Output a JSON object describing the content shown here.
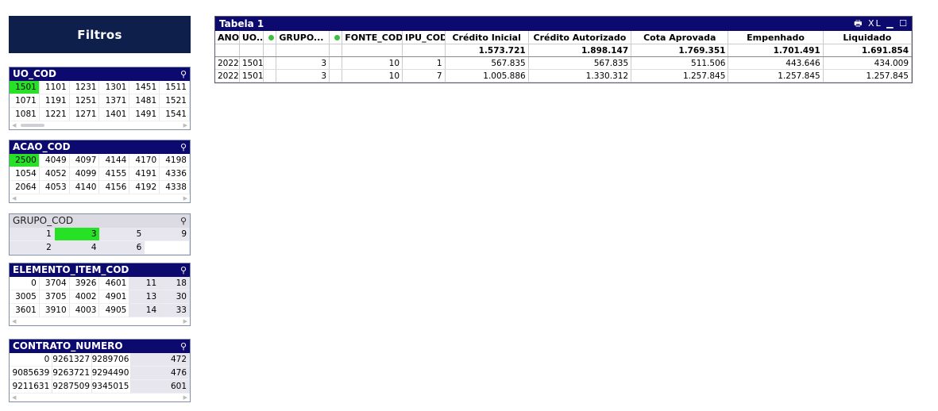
{
  "sidebar": {
    "title": "Filtros"
  },
  "lb_uo": {
    "caption": "UO_COD",
    "rows": [
      [
        "1501",
        "1101",
        "1231",
        "1301",
        "1451",
        "1511"
      ],
      [
        "1071",
        "1191",
        "1251",
        "1371",
        "1481",
        "1521"
      ],
      [
        "1081",
        "1221",
        "1271",
        "1401",
        "1491",
        "1541"
      ]
    ],
    "selected": [
      "1501"
    ]
  },
  "lb_acao": {
    "caption": "ACAO_COD",
    "rows": [
      [
        "2500",
        "4049",
        "4097",
        "4144",
        "4170",
        "4198"
      ],
      [
        "1054",
        "4052",
        "4099",
        "4155",
        "4191",
        "4336"
      ],
      [
        "2064",
        "4053",
        "4140",
        "4156",
        "4192",
        "4338"
      ]
    ],
    "selected": [
      "2500"
    ]
  },
  "lb_grupo": {
    "caption": "GRUPO_COD",
    "rows": [
      [
        "1",
        "3",
        "5",
        "9"
      ],
      [
        "2",
        "4",
        "6",
        ""
      ]
    ],
    "selected": [
      "3"
    ]
  },
  "lb_elem": {
    "caption": "ELEMENTO_ITEM_COD",
    "rows": [
      [
        "0",
        "3704",
        "3926",
        "4601",
        "11",
        "18"
      ],
      [
        "3005",
        "3705",
        "4002",
        "4901",
        "13",
        "30"
      ],
      [
        "3601",
        "3910",
        "4003",
        "4905",
        "14",
        "33"
      ]
    ]
  },
  "lb_contrato": {
    "caption": "CONTRATO_NUMERO",
    "rows": [
      [
        "0",
        "9261327",
        "9289706",
        "472"
      ],
      [
        "9085639",
        "9263721",
        "9294490",
        "476"
      ],
      [
        "9211631",
        "9287509",
        "9345015",
        "601"
      ]
    ]
  },
  "table": {
    "title": "Tabela 1",
    "controls": "🖶 XL ▁ ☐",
    "headers": [
      "ANO",
      "UO...",
      "",
      "GRUPO...",
      "",
      "FONTE_COD",
      "IPU_COD",
      "Crédito Inicial",
      "Crédito Autorizado",
      "Cota Aprovada",
      "Empenhado",
      "Liquidado"
    ],
    "totals": [
      "",
      "",
      "",
      "",
      "",
      "",
      "",
      "1.573.721",
      "1.898.147",
      "1.769.351",
      "1.701.491",
      "1.691.854"
    ],
    "rows": [
      [
        "2022",
        "1501",
        "",
        "3",
        "",
        "10",
        "1",
        "567.835",
        "567.835",
        "511.506",
        "443.646",
        "434.009"
      ],
      [
        "2022",
        "1501",
        "",
        "3",
        "",
        "10",
        "7",
        "1.005.886",
        "1.330.312",
        "1.257.845",
        "1.257.845",
        "1.257.845"
      ]
    ]
  }
}
